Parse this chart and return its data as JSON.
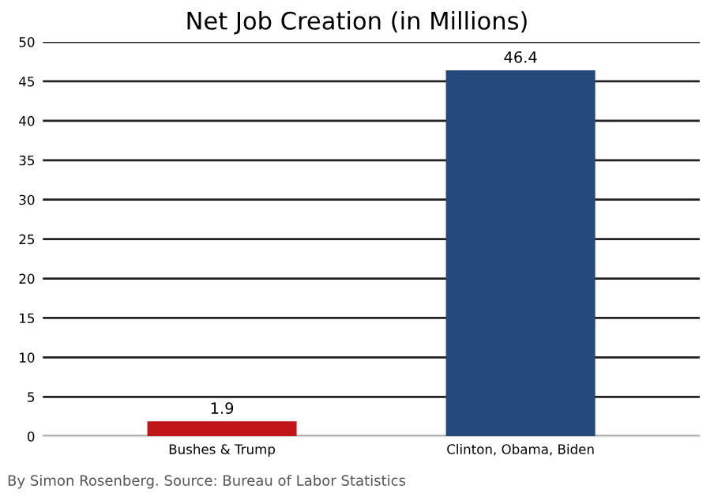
{
  "chart_data": {
    "type": "bar",
    "title": "Net Job Creation (in Millions)",
    "categories": [
      "Bushes & Trump",
      "Clinton, Obama, Biden"
    ],
    "values": [
      1.9,
      46.4
    ],
    "colors": [
      "#c0161a",
      "#244a7c"
    ],
    "data_labels": true,
    "ylim": [
      0,
      50
    ],
    "yticks": [
      0,
      5,
      10,
      15,
      20,
      25,
      30,
      35,
      40,
      45,
      50
    ],
    "grid": "y",
    "annotations": [
      "By Simon Rosenberg. Source: Bureau of Labor Statistics"
    ]
  }
}
